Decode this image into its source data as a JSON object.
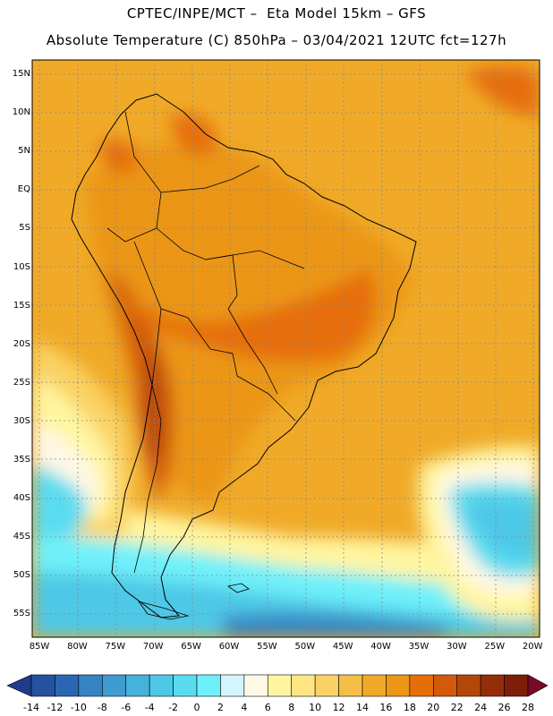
{
  "header": {
    "line1": "CPTEC/INPE/MCT –  Eta Model 15km – GFS",
    "line2": "Absolute Temperature (C) 850hPa – 03/04/2021 12UTC fct=127h"
  },
  "map": {
    "lat_labels": [
      "15N",
      "10N",
      "5N",
      "EQ",
      "5S",
      "10S",
      "15S",
      "20S",
      "25S",
      "30S",
      "35S",
      "40S",
      "45S",
      "50S",
      "55S"
    ],
    "lon_labels": [
      "85W",
      "80W",
      "75W",
      "70W",
      "65W",
      "60W",
      "55W",
      "50W",
      "45W",
      "40W",
      "35W",
      "30W",
      "25W",
      "20W"
    ],
    "lat_range": [
      17,
      -58
    ],
    "lon_range": [
      -86,
      -19
    ],
    "gridlines": true
  },
  "colorbar": {
    "labels": [
      "-14",
      "-12",
      "-10",
      "-8",
      "-6",
      "-4",
      "-2",
      "0",
      "2",
      "4",
      "6",
      "8",
      "10",
      "12",
      "14",
      "16",
      "18",
      "20",
      "22",
      "24",
      "26",
      "28"
    ],
    "colors": [
      "#1e3c8c",
      "#2451a0",
      "#2b66b4",
      "#3683c4",
      "#3f9cd2",
      "#45b2dc",
      "#4dc8e6",
      "#5adcf0",
      "#6ef0fa",
      "#d2f5ff",
      "#fff8e6",
      "#fff5a0",
      "#ffe682",
      "#fad264",
      "#f5be46",
      "#f0aa28",
      "#eb9614",
      "#e66e0a",
      "#d25a0a",
      "#b4460a",
      "#962d0a",
      "#7d1e0a",
      "#780a28"
    ]
  }
}
